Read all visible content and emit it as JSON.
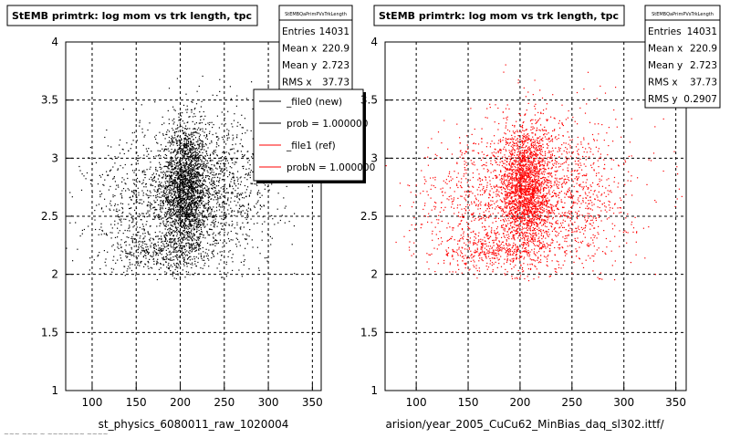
{
  "colors": {
    "background": "#ffffff",
    "new_series": "#000000",
    "ref_series": "#ff0000",
    "frame": "#000000",
    "grid": "#000000"
  },
  "chart_data": [
    {
      "type": "scatter",
      "title": "StEMB primtrk: log mom vs trk length, tpc",
      "xlabel": "st_physics_6080011_raw_1020004",
      "ylabel": "",
      "xlim": [
        70,
        360
      ],
      "ylim": [
        1,
        4
      ],
      "xticks": [
        "100",
        "150",
        "200",
        "250",
        "300",
        "350"
      ],
      "yticks": [
        "1",
        "1.5",
        "2",
        "2.5",
        "3",
        "3.5",
        "4"
      ],
      "grid": true,
      "series": [
        {
          "name": "_file0 (new)",
          "color": "#000000",
          "density_clusters": [
            {
              "x": 205,
              "y": 2.75,
              "sx": 12,
              "sy": 0.28,
              "w": 0.45
            },
            {
              "x": 230,
              "y": 2.7,
              "sx": 38,
              "sy": 0.33,
              "w": 0.35
            },
            {
              "x": 155,
              "y": 2.6,
              "sx": 32,
              "sy": 0.3,
              "w": 0.12
            },
            {
              "x": 175,
              "y": 2.2,
              "sx": 30,
              "sy": 0.08,
              "w": 0.08
            }
          ]
        }
      ],
      "stats_box": {
        "header": "StEMBQaPrimPVsTrkLength",
        "rows": [
          {
            "label": "Entries",
            "value": "14031"
          },
          {
            "label": "Mean x",
            "value": "220.9"
          },
          {
            "label": "Mean y",
            "value": "2.723"
          },
          {
            "label": "RMS x",
            "value": "37.73"
          }
        ]
      },
      "legend": {
        "placement": "top-right",
        "entries": [
          {
            "label": "_file0 (new)",
            "color": "#000000"
          },
          {
            "label": "prob = 1.000000",
            "color": "#000000"
          },
          {
            "label": "_file1 (ref)",
            "color": "#ff0000"
          },
          {
            "label": "probN = 1.000000",
            "color": "#ff0000"
          }
        ]
      }
    },
    {
      "type": "scatter",
      "title": "StEMB primtrk: log mom vs trk length, tpc",
      "xlabel": "arision/year_2005_CuCu62_MinBias_daq_sl302.ittf/",
      "ylabel": "",
      "xlim": [
        70,
        360
      ],
      "ylim": [
        1,
        4
      ],
      "xticks": [
        "100",
        "150",
        "200",
        "250",
        "300",
        "350"
      ],
      "yticks": [
        "1",
        "1.5",
        "2",
        "2.5",
        "3",
        "3.5",
        "4"
      ],
      "grid": true,
      "series": [
        {
          "name": "_file1 (ref)",
          "color": "#ff0000",
          "density_clusters": [
            {
              "x": 205,
              "y": 2.75,
              "sx": 12,
              "sy": 0.28,
              "w": 0.45
            },
            {
              "x": 230,
              "y": 2.7,
              "sx": 38,
              "sy": 0.33,
              "w": 0.35
            },
            {
              "x": 155,
              "y": 2.6,
              "sx": 32,
              "sy": 0.3,
              "w": 0.12
            },
            {
              "x": 175,
              "y": 2.2,
              "sx": 30,
              "sy": 0.08,
              "w": 0.08
            }
          ]
        }
      ],
      "stats_box": {
        "header": "StEMBQaPrimPVsTrkLength",
        "rows": [
          {
            "label": "Entries",
            "value": "14031"
          },
          {
            "label": "Mean x",
            "value": "220.9"
          },
          {
            "label": "Mean y",
            "value": "2.723"
          },
          {
            "label": "RMS x",
            "value": "37.73"
          },
          {
            "label": "RMS y",
            "value": "0.2907"
          }
        ]
      }
    }
  ],
  "footer_text": "~~~ ~~~ ~ ~~~~~~~ ~~~~"
}
